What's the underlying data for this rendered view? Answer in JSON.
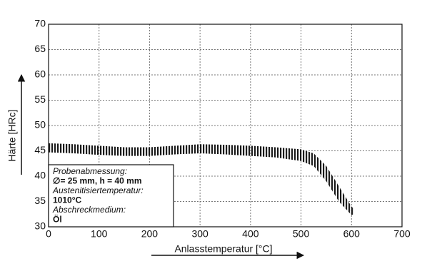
{
  "chart_data": {
    "type": "band",
    "xlabel": "Anlasstemperatur [°C]",
    "ylabel": "Härte [HRc]",
    "x": [
      0,
      50,
      100,
      150,
      200,
      250,
      300,
      350,
      400,
      450,
      500,
      525,
      550,
      575,
      600,
      605
    ],
    "upper": [
      46.5,
      46.3,
      46,
      45.7,
      45.7,
      46,
      46.3,
      46.2,
      46,
      45.7,
      45.3,
      44.5,
      42,
      38,
      34,
      33.5
    ],
    "lower": [
      44.7,
      44.5,
      44.2,
      44,
      44,
      44.3,
      44.5,
      44.3,
      44,
      43.7,
      43,
      42,
      39,
      35,
      32.3,
      32.5
    ],
    "color": "#1a1a1a",
    "xlim": [
      0,
      700
    ],
    "xticks": [
      0,
      100,
      200,
      300,
      400,
      500,
      600,
      700
    ],
    "ylim": [
      30,
      70
    ],
    "yticks": [
      30,
      35,
      40,
      45,
      50,
      55,
      60,
      65,
      70
    ],
    "grid": true,
    "annotation": [
      {
        "text": "Probenabmessung:",
        "style": "italic"
      },
      {
        "text": "∅= 25 mm, h = 40 mm",
        "style": "bold"
      },
      {
        "text": "Austenitisiertemperatur:",
        "style": "italic"
      },
      {
        "text": "1010°C",
        "style": "bold"
      },
      {
        "text": "Abschreckmedium:",
        "style": "italic"
      },
      {
        "text": "Öl",
        "style": "bold"
      }
    ]
  }
}
